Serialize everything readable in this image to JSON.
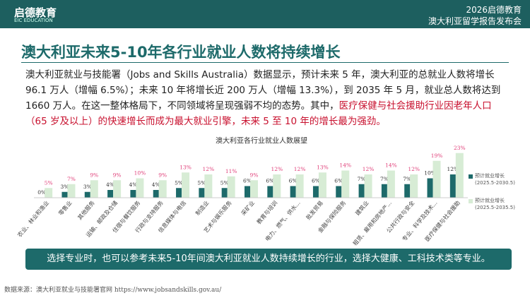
{
  "header": {
    "logo": "启德教育",
    "logo_en": "EIC EDUCATION",
    "event_year": "2026启德教育",
    "event_name": "澳大利亚留学报告发布会"
  },
  "title": "澳大利亚未来5-10年各行业就业人数将持续增长",
  "paragraph": {
    "normal": "澳大利亚就业与技能署（Jobs and Skills Australia）数据显示，预计未来 5 年，澳大利亚的总就业人数将增长96.1 万人（增幅 6.5%）；未来 10 年将增长近 200 万人（增幅 13.3%），到 2035 年 5 月，就业总人数将达到1660 万人。在这一整体格局下，不同领域将呈现强弱不均的态势。其中，",
    "highlight": "医疗保健与社会援助行业因老年人口（65 岁及以上）的快速增长而成为最大就业引擎，未来 5 至 10 年的增长最为强劲。"
  },
  "chart_data": {
    "type": "bar",
    "title": "澳大利亚各行业就业人数展望",
    "categories": [
      "农业、林业和渔业",
      "零售业",
      "其他服务",
      "运输、邮政及仓储",
      "住宿与餐饮服务",
      "行政与支持服务",
      "信息媒体与电信",
      "制造业",
      "艺术与娱乐服务",
      "采矿业",
      "教育与培训",
      "电力、燃气、供水...",
      "批发贸易",
      "金融与保险服务",
      "建筑业",
      "租赁、雇用和房地产...",
      "公共行政与安全",
      "专业、科学及技术...",
      "医疗保健与社会援助"
    ],
    "series": [
      {
        "name": "预计就业增长\n(2025.5-2030.5)",
        "color": "#1d6a6a",
        "label_color": "#333333",
        "values": [
          0,
          3,
          3,
          4,
          4,
          4,
          5,
          5,
          5,
          6,
          6,
          6,
          6,
          6,
          7,
          7,
          7,
          10,
          12
        ],
        "value_labels": [
          "0%",
          "3%",
          "3%",
          "4%",
          "4%",
          "4%",
          "5%",
          "5%",
          "5%",
          "6%",
          "6%",
          "6%",
          "6%",
          "6%",
          "7%",
          "7%",
          "7%",
          "10%",
          "12%"
        ]
      },
      {
        "name": "预计就业增长\n(2025.5-2035.5)",
        "color": "#d7ecd5",
        "label_color": "#e0407a",
        "values": [
          5,
          7,
          9,
          9,
          10,
          9,
          13,
          12,
          11,
          9,
          12,
          12,
          13,
          14,
          12,
          14,
          12,
          19,
          23
        ],
        "value_labels": [
          "5%",
          "7%",
          "9%",
          "9%",
          "10%",
          "9%",
          "13%",
          "12%",
          "11%",
          "9%",
          "12%",
          "12%",
          "13%",
          "14%",
          "12%",
          "14%",
          "12%",
          "19%",
          "23%"
        ]
      }
    ]
  },
  "tip": "选择专业时，也可以参考未来5-10年间澳大利亚就业人数持续增长的行业，选择大健康、工科技术类等专业。",
  "source": "数据来源：澳大利亚就业与技能署官网 https://www.jobsandskills.gov.au/"
}
